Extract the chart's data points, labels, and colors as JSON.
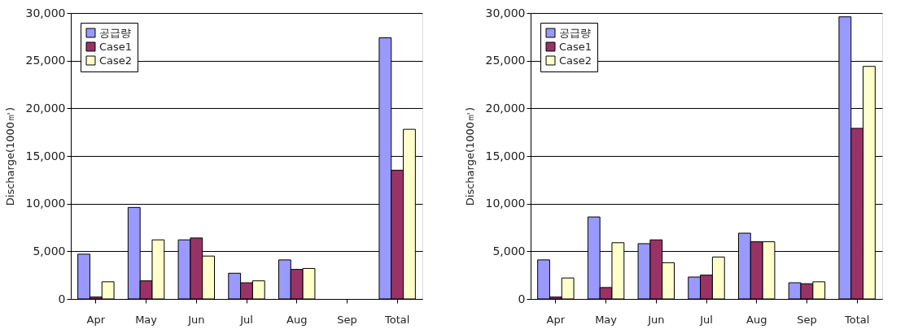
{
  "chart_data": [
    {
      "type": "bar",
      "categories": [
        "Apr",
        "May",
        "Jun",
        "Jul",
        "Aug",
        "Sep",
        "Total"
      ],
      "ylabel": "Discharge(1000㎥)",
      "ylim": [
        0,
        30000
      ],
      "yticks": [
        0,
        {
          "value": 5000,
          "label": "5,000"
        },
        {
          "value": 10000,
          "label": "10,000"
        },
        {
          "value": 15000,
          "label": "15,000"
        },
        {
          "value": 20000,
          "label": "20,000"
        },
        {
          "value": 25000,
          "label": "25,000"
        },
        {
          "value": 30000,
          "label": "30,000"
        }
      ],
      "grid": "y",
      "legend": "top left",
      "series": [
        {
          "name": "공급량",
          "color": "#9999ff",
          "values": [
            4700,
            9600,
            6200,
            2700,
            4100,
            null,
            27400
          ]
        },
        {
          "name": "Case1",
          "color": "#993366",
          "values": [
            200,
            1900,
            6400,
            1700,
            3100,
            null,
            13500
          ]
        },
        {
          "name": "Case2",
          "color": "#ffffcc",
          "values": [
            1800,
            6200,
            4500,
            1900,
            3200,
            null,
            17800
          ]
        }
      ]
    },
    {
      "type": "bar",
      "categories": [
        "Apr",
        "May",
        "Jun",
        "Jul",
        "Aug",
        "Sep",
        "Total"
      ],
      "ylabel": "Discharge(1000㎥)",
      "ylim": [
        0,
        30000
      ],
      "yticks": [
        0,
        {
          "value": 5000,
          "label": "5,000"
        },
        {
          "value": 10000,
          "label": "10,000"
        },
        {
          "value": 15000,
          "label": "15,000"
        },
        {
          "value": 20000,
          "label": "20,000"
        },
        {
          "value": 25000,
          "label": "25,000"
        },
        {
          "value": 30000,
          "label": "30,000"
        }
      ],
      "grid": "y",
      "legend": "top left",
      "series": [
        {
          "name": "공급량",
          "color": "#9999ff",
          "values": [
            4100,
            8600,
            5800,
            2300,
            6900,
            1700,
            29600
          ]
        },
        {
          "name": "Case1",
          "color": "#993366",
          "values": [
            200,
            1200,
            6200,
            2500,
            6000,
            1600,
            17900
          ]
        },
        {
          "name": "Case2",
          "color": "#ffffcc",
          "values": [
            2200,
            5900,
            3800,
            4400,
            6000,
            1800,
            24400
          ]
        }
      ]
    }
  ]
}
